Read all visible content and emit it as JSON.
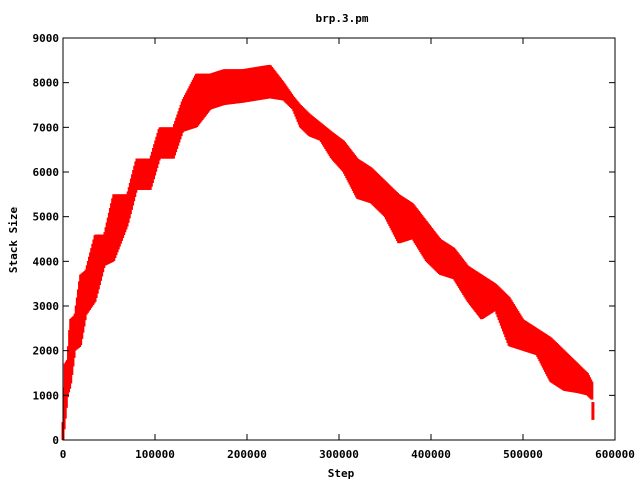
{
  "chart_data": {
    "type": "scatter",
    "title": "brp.3.pm",
    "xlabel": "Step",
    "ylabel": "Stack Size",
    "xlim": [
      0,
      600000
    ],
    "ylim": [
      0,
      9000
    ],
    "x_ticks": [
      "0",
      "100000",
      "200000",
      "300000",
      "400000",
      "500000",
      "600000"
    ],
    "y_ticks": [
      "0",
      "1000",
      "2000",
      "3000",
      "4000",
      "5000",
      "6000",
      "7000",
      "8000",
      "9000"
    ],
    "grid": false,
    "legend": "none",
    "color": "#ff0000",
    "series": [
      {
        "x": [
          0,
          2000,
          5000,
          8000,
          13000,
          19000,
          25000,
          35000,
          45000,
          55000,
          70000,
          80000,
          95000,
          105000,
          120000,
          130000,
          145000,
          160000,
          175000,
          195000,
          210000,
          225000,
          240000,
          250000,
          258000,
          268000,
          280000,
          292000,
          305000,
          320000,
          335000,
          350000,
          365000,
          380000,
          395000,
          410000,
          425000,
          440000,
          455000,
          470000,
          485000,
          500000,
          515000,
          530000,
          545000,
          560000,
          570000,
          575000,
          577000
        ],
        "y_low": [
          0,
          400,
          1000,
          1200,
          2000,
          2100,
          2800,
          3100,
          3900,
          4000,
          4800,
          5600,
          5600,
          6300,
          6300,
          6900,
          7000,
          7400,
          7500,
          7550,
          7600,
          7650,
          7600,
          7400,
          7000,
          6800,
          6700,
          6300,
          6000,
          5400,
          5300,
          5000,
          4400,
          4500,
          4000,
          3700,
          3600,
          3100,
          2700,
          2900,
          2100,
          2000,
          1900,
          1300,
          1100,
          1050,
          1000,
          900,
          0
        ],
        "y_high": [
          400,
          1700,
          1800,
          2700,
          2800,
          3700,
          3800,
          4600,
          4600,
          5500,
          5500,
          6300,
          6300,
          7000,
          7000,
          7600,
          8200,
          8200,
          8300,
          8300,
          8350,
          8400,
          8000,
          7700,
          7500,
          7300,
          7100,
          6900,
          6700,
          6300,
          6100,
          5800,
          5500,
          5300,
          4900,
          4500,
          4300,
          3900,
          3700,
          3500,
          3200,
          2700,
          2500,
          2300,
          2000,
          1700,
          1500,
          1300,
          400
        ]
      }
    ]
  }
}
